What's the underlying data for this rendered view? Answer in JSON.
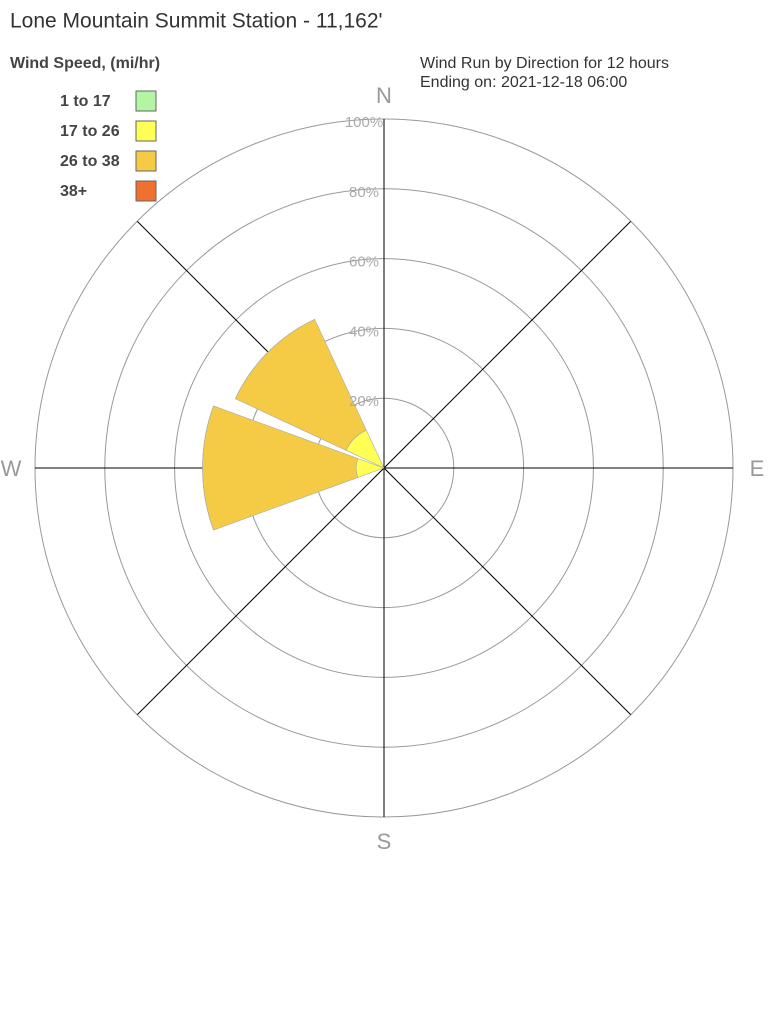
{
  "chart_data": {
    "type": "windrose",
    "title": "Lone Mountain Summit Station - 11,162'",
    "legend_title": "Wind Speed, (mi/hr)",
    "subtitle": [
      "Wind Run by Direction for 12 hours",
      "Ending on: 2021-12-18 06:00"
    ],
    "categories": [
      "N",
      null,
      "E",
      null,
      "S",
      null,
      "W",
      null
    ],
    "series": [
      {
        "name": "1 to 17",
        "color": "#b3f5a3",
        "values": [
          0,
          0,
          0,
          0,
          0,
          0,
          0,
          0
        ]
      },
      {
        "name": "17 to 26",
        "color": "#ffff55",
        "values": [
          0,
          0,
          0,
          0,
          0,
          0,
          8,
          12
        ]
      },
      {
        "name": "26 to 38",
        "color": "#f5cb45",
        "values": [
          0,
          0,
          0,
          0,
          0,
          0,
          44,
          35
        ]
      },
      {
        "name": "38+",
        "color": "#f07030",
        "values": [
          0,
          0,
          0,
          0,
          0,
          0,
          0,
          0
        ]
      }
    ],
    "rlim": [
      0,
      100
    ],
    "rticks": [
      {
        "value": 20,
        "label": "20%"
      },
      {
        "value": 40,
        "label": "40%"
      },
      {
        "value": 60,
        "label": "60%"
      },
      {
        "value": 80,
        "label": "80%"
      },
      {
        "value": 100,
        "label": "100%"
      }
    ]
  }
}
